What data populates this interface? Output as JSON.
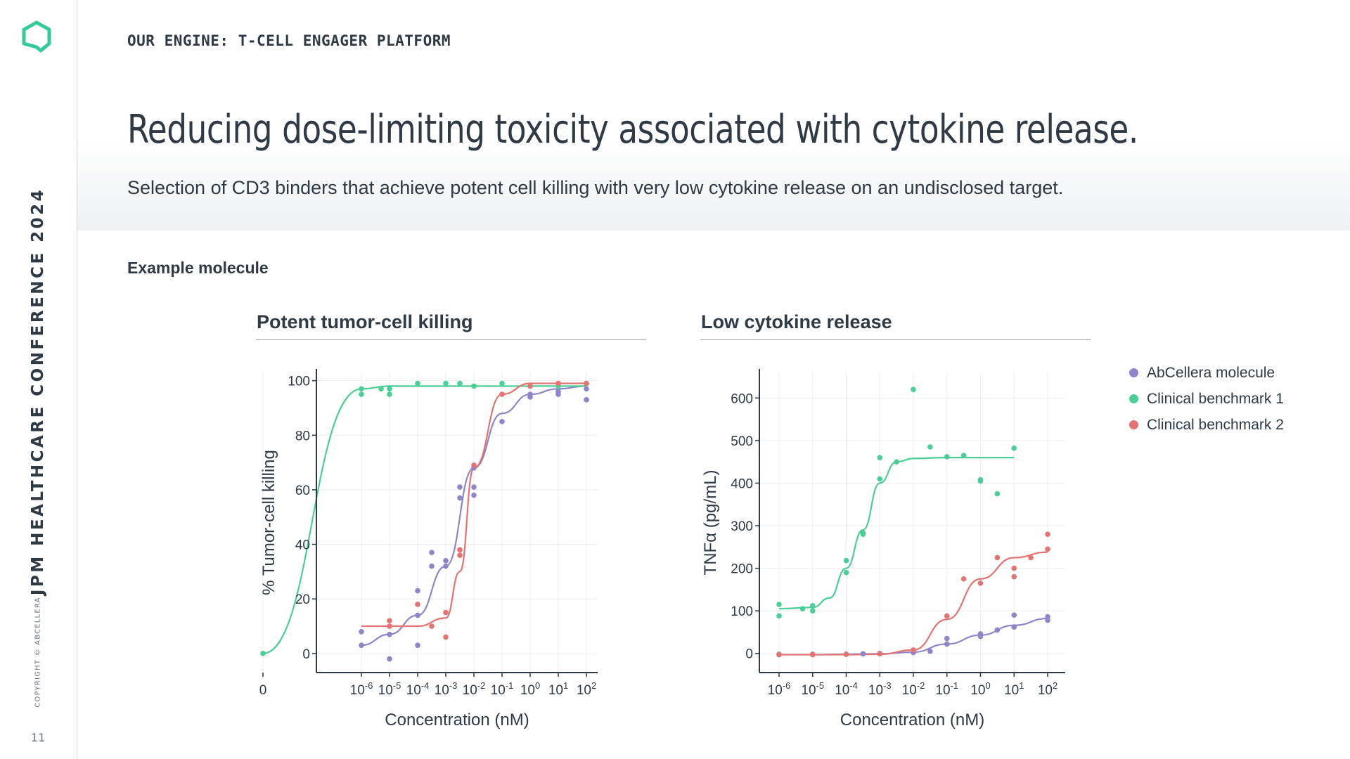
{
  "sidebar": {
    "conference": "JPM HEALTHCARE CONFERENCE 2024",
    "copyright": "COPYRIGHT © ABCELLERA",
    "page_number": "11",
    "logo_icon": "hexagon-logo-icon",
    "accent_color": "#36c99b"
  },
  "header": {
    "eyebrow": "OUR ENGINE: T-CELL ENGAGER PLATFORM",
    "title": "Reducing dose-limiting toxicity associated with cytokine release.",
    "subtitle": "Selection of CD3 binders that achieve potent cell killing with very low cytokine release on an undisclosed target."
  },
  "section_label": "Example molecule",
  "legend": [
    {
      "label": "AbCellera molecule",
      "color": "#8e86c9"
    },
    {
      "label": "Clinical benchmark 1",
      "color": "#4ccf97"
    },
    {
      "label": "Clinical benchmark 2",
      "color": "#e57373"
    }
  ],
  "chart_data": [
    {
      "type": "scatter",
      "title": "Potent tumor-cell killing",
      "xlabel": "Concentration (nM)",
      "ylabel": "% Tumor-cell killing",
      "x_scale": "log10 (with 0)",
      "x_ticks": [
        "0",
        "10-6",
        "10-5",
        "10-4",
        "10-3",
        "10-2",
        "10-1",
        "100",
        "101",
        "102"
      ],
      "ylim": [
        -7,
        103
      ],
      "y_ticks": [
        0,
        20,
        40,
        60,
        80,
        100
      ],
      "grid": true,
      "series": [
        {
          "name": "AbCellera molecule",
          "color": "#8e86c9",
          "points": [
            [
              "10-6",
              8
            ],
            [
              "10-6",
              3
            ],
            [
              "10-5",
              7
            ],
            [
              "10-5",
              -2
            ],
            [
              "10-4",
              23
            ],
            [
              "10-4",
              14
            ],
            [
              "10-4",
              3
            ],
            [
              "10-3.5",
              37
            ],
            [
              "10-3.5",
              32
            ],
            [
              "10-3",
              34
            ],
            [
              "10-3",
              32
            ],
            [
              "10-2.5",
              61
            ],
            [
              "10-2.5",
              57
            ],
            [
              "10-2",
              68
            ],
            [
              "10-2",
              61
            ],
            [
              "10-2",
              58
            ],
            [
              "10-1",
              85
            ],
            [
              "100",
              95
            ],
            [
              "100",
              94
            ],
            [
              "101",
              96
            ],
            [
              "101",
              95
            ],
            [
              "102",
              97
            ],
            [
              "102",
              93
            ]
          ],
          "curve": [
            [
              "10-6",
              3
            ],
            [
              "10-5",
              7
            ],
            [
              "10-4",
              14
            ],
            [
              "10-3",
              32
            ],
            [
              "10-2",
              68
            ],
            [
              "10-1",
              88
            ],
            [
              "100",
              95
            ],
            [
              "101",
              97
            ],
            [
              "102",
              98
            ]
          ]
        },
        {
          "name": "Clinical benchmark 1",
          "color": "#4ccf97",
          "points": [
            [
              "0",
              0
            ],
            [
              "10-6",
              97
            ],
            [
              "10-6",
              95
            ],
            [
              "10-5.3",
              97
            ],
            [
              "10-5",
              97
            ],
            [
              "10-5",
              95
            ],
            [
              "10-4",
              99
            ],
            [
              "10-3",
              99
            ],
            [
              "10-2.5",
              99
            ],
            [
              "10-2",
              98
            ],
            [
              "10-1",
              99
            ],
            [
              "100",
              98
            ],
            [
              "101",
              98
            ],
            [
              "102",
              99
            ]
          ],
          "curve": [
            [
              "0",
              0
            ],
            [
              "10-6",
              97
            ],
            [
              "10-5",
              98
            ],
            [
              "10-4",
              98
            ],
            [
              "10-3",
              98
            ],
            [
              "10-2",
              98
            ],
            [
              "10-1",
              98
            ],
            [
              "100",
              98
            ],
            [
              "101",
              98
            ],
            [
              "102",
              98
            ]
          ]
        },
        {
          "name": "Clinical benchmark 2",
          "color": "#e57373",
          "points": [
            [
              "10-5",
              12
            ],
            [
              "10-5",
              10
            ],
            [
              "10-4",
              18
            ],
            [
              "10-3.5",
              10
            ],
            [
              "10-3",
              15
            ],
            [
              "10-3",
              6
            ],
            [
              "10-2.5",
              38
            ],
            [
              "10-2.5",
              36
            ],
            [
              "10-2",
              69
            ],
            [
              "10-1",
              95
            ],
            [
              "100",
              98
            ],
            [
              "101",
              99
            ],
            [
              "102",
              99
            ]
          ],
          "curve": [
            [
              "10-6",
              10
            ],
            [
              "10-5",
              10
            ],
            [
              "10-4",
              10
            ],
            [
              "10-3",
              13
            ],
            [
              "10-2.5",
              30
            ],
            [
              "10-2",
              68
            ],
            [
              "10-1",
              95
            ],
            [
              "100",
              99
            ],
            [
              "101",
              99
            ],
            [
              "102",
              99
            ]
          ]
        }
      ]
    },
    {
      "type": "scatter",
      "title": "Low cytokine release",
      "xlabel": "Concentration (nM)",
      "ylabel": "TNFα (pg/mL)",
      "x_scale": "log10",
      "x_ticks": [
        "10-6",
        "10-5",
        "10-4",
        "10-3",
        "10-2",
        "10-1",
        "100",
        "101",
        "102"
      ],
      "ylim": [
        -45,
        660
      ],
      "y_ticks": [
        0,
        100,
        200,
        300,
        400,
        500,
        600
      ],
      "grid": true,
      "series": [
        {
          "name": "AbCellera molecule",
          "color": "#8e86c9",
          "points": [
            [
              "10-6",
              -2
            ],
            [
              "10-5",
              -2
            ],
            [
              "10-4",
              -2
            ],
            [
              "10-3.5",
              -1
            ],
            [
              "10-3",
              0
            ],
            [
              "10-2",
              2
            ],
            [
              "10-2",
              3
            ],
            [
              "10-1.5",
              5
            ],
            [
              "10-1",
              35
            ],
            [
              "10-1",
              22
            ],
            [
              "100",
              46
            ],
            [
              "100",
              40
            ],
            [
              "100.5",
              55
            ],
            [
              "101",
              90
            ],
            [
              "101",
              62
            ],
            [
              "102",
              86
            ],
            [
              "102",
              78
            ]
          ],
          "curve": [
            [
              "10-6",
              -3
            ],
            [
              "10-5",
              -3
            ],
            [
              "10-4",
              -2
            ],
            [
              "10-3",
              -1
            ],
            [
              "10-2",
              3
            ],
            [
              "10-1",
              22
            ],
            [
              "100",
              43
            ],
            [
              "101",
              66
            ],
            [
              "102",
              82
            ]
          ]
        },
        {
          "name": "Clinical benchmark 1",
          "color": "#4ccf97",
          "points": [
            [
              "10-6",
              115
            ],
            [
              "10-6",
              88
            ],
            [
              "10-5.3",
              105
            ],
            [
              "10-5",
              112
            ],
            [
              "10-5",
              100
            ],
            [
              "10-4",
              218
            ],
            [
              "10-4",
              190
            ],
            [
              "10-3.5",
              283
            ],
            [
              "10-3.5",
              280
            ],
            [
              "10-3",
              410
            ],
            [
              "10-3",
              460
            ],
            [
              "10-2.5",
              450
            ],
            [
              "10-2",
              620
            ],
            [
              "10-1.5",
              485
            ],
            [
              "10-1",
              462
            ],
            [
              "10-0.5",
              465
            ],
            [
              "100",
              405
            ],
            [
              "100",
              408
            ],
            [
              "100.5",
              375
            ],
            [
              "101",
              482
            ]
          ],
          "curve": [
            [
              "10-6",
              105
            ],
            [
              "10-5",
              108
            ],
            [
              "10-4.5",
              130
            ],
            [
              "10-4",
              200
            ],
            [
              "10-3.5",
              290
            ],
            [
              "10-3",
              400
            ],
            [
              "10-2.5",
              450
            ],
            [
              "10-2",
              458
            ],
            [
              "10-1",
              460
            ],
            [
              "100",
              460
            ],
            [
              "101",
              460
            ]
          ]
        },
        {
          "name": "Clinical benchmark 2",
          "color": "#e57373",
          "points": [
            [
              "10-6",
              -3
            ],
            [
              "10-5",
              -3
            ],
            [
              "10-4",
              -2
            ],
            [
              "10-3",
              -1
            ],
            [
              "10-2",
              8
            ],
            [
              "10-1",
              88
            ],
            [
              "10-0.5",
              175
            ],
            [
              "100",
              165
            ],
            [
              "100.5",
              225
            ],
            [
              "101",
              180
            ],
            [
              "101",
              200
            ],
            [
              "101.5",
              225
            ],
            [
              "102",
              280
            ],
            [
              "102",
              245
            ]
          ],
          "curve": [
            [
              "10-6",
              -3
            ],
            [
              "10-5",
              -3
            ],
            [
              "10-4",
              -3
            ],
            [
              "10-3",
              -2
            ],
            [
              "10-2",
              8
            ],
            [
              "10-1",
              80
            ],
            [
              "100",
              175
            ],
            [
              "101",
              225
            ],
            [
              "102",
              238
            ]
          ]
        }
      ]
    }
  ]
}
